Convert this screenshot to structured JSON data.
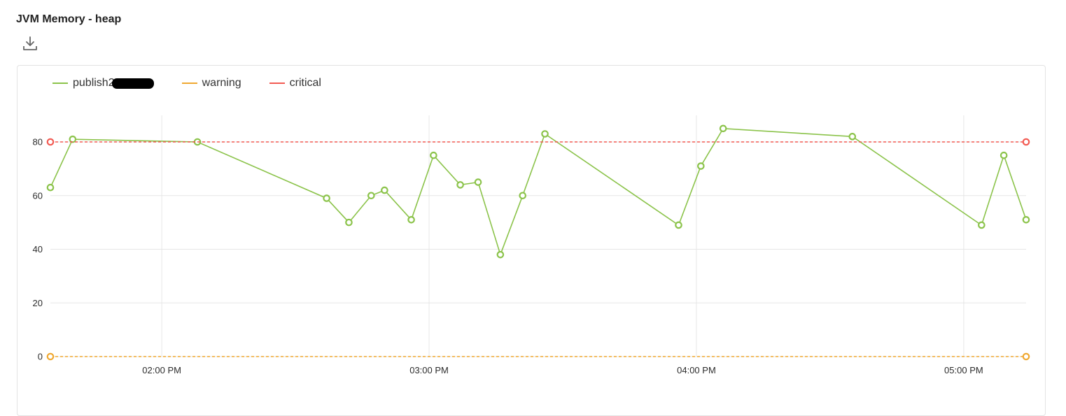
{
  "title": "JVM Memory - heap",
  "download_icon": "download-icon",
  "legend": [
    {
      "label": "publish2",
      "color": "#8bc34a",
      "redacted": true
    },
    {
      "label": "warning",
      "color": "#f0a830"
    },
    {
      "label": "critical",
      "color": "#f25a52"
    }
  ],
  "chart_data": {
    "type": "line",
    "x_tick_labels": [
      "02:00 PM",
      "03:00 PM",
      "04:00 PM",
      "05:00 PM"
    ],
    "y_ticks": [
      0,
      20,
      40,
      60,
      80
    ],
    "ylim": [
      0,
      90
    ],
    "xlim": [
      "13:35",
      "17:14"
    ],
    "grid": true,
    "legend_position": "top-left",
    "series": [
      {
        "name": "publish2",
        "color": "#8bc34a",
        "x": [
          "13:35",
          "13:40",
          "14:08",
          "14:37",
          "14:42",
          "14:47",
          "14:50",
          "14:56",
          "15:01",
          "15:07",
          "15:11",
          "15:16",
          "15:21",
          "15:26",
          "15:56",
          "16:01",
          "16:06",
          "16:35",
          "17:04",
          "17:09",
          "17:14"
        ],
        "y": [
          63,
          81,
          80,
          59,
          50,
          60,
          62,
          51,
          75,
          64,
          65,
          38,
          60,
          83,
          49,
          71,
          85,
          82,
          49,
          75,
          51
        ]
      },
      {
        "name": "warning",
        "color": "#f0a830",
        "dashed": true,
        "x": [
          "13:35",
          "17:14"
        ],
        "y": [
          0,
          0
        ]
      },
      {
        "name": "critical",
        "color": "#f25a52",
        "dashed": true,
        "x": [
          "13:35",
          "17:14"
        ],
        "y": [
          80,
          80
        ]
      }
    ]
  }
}
